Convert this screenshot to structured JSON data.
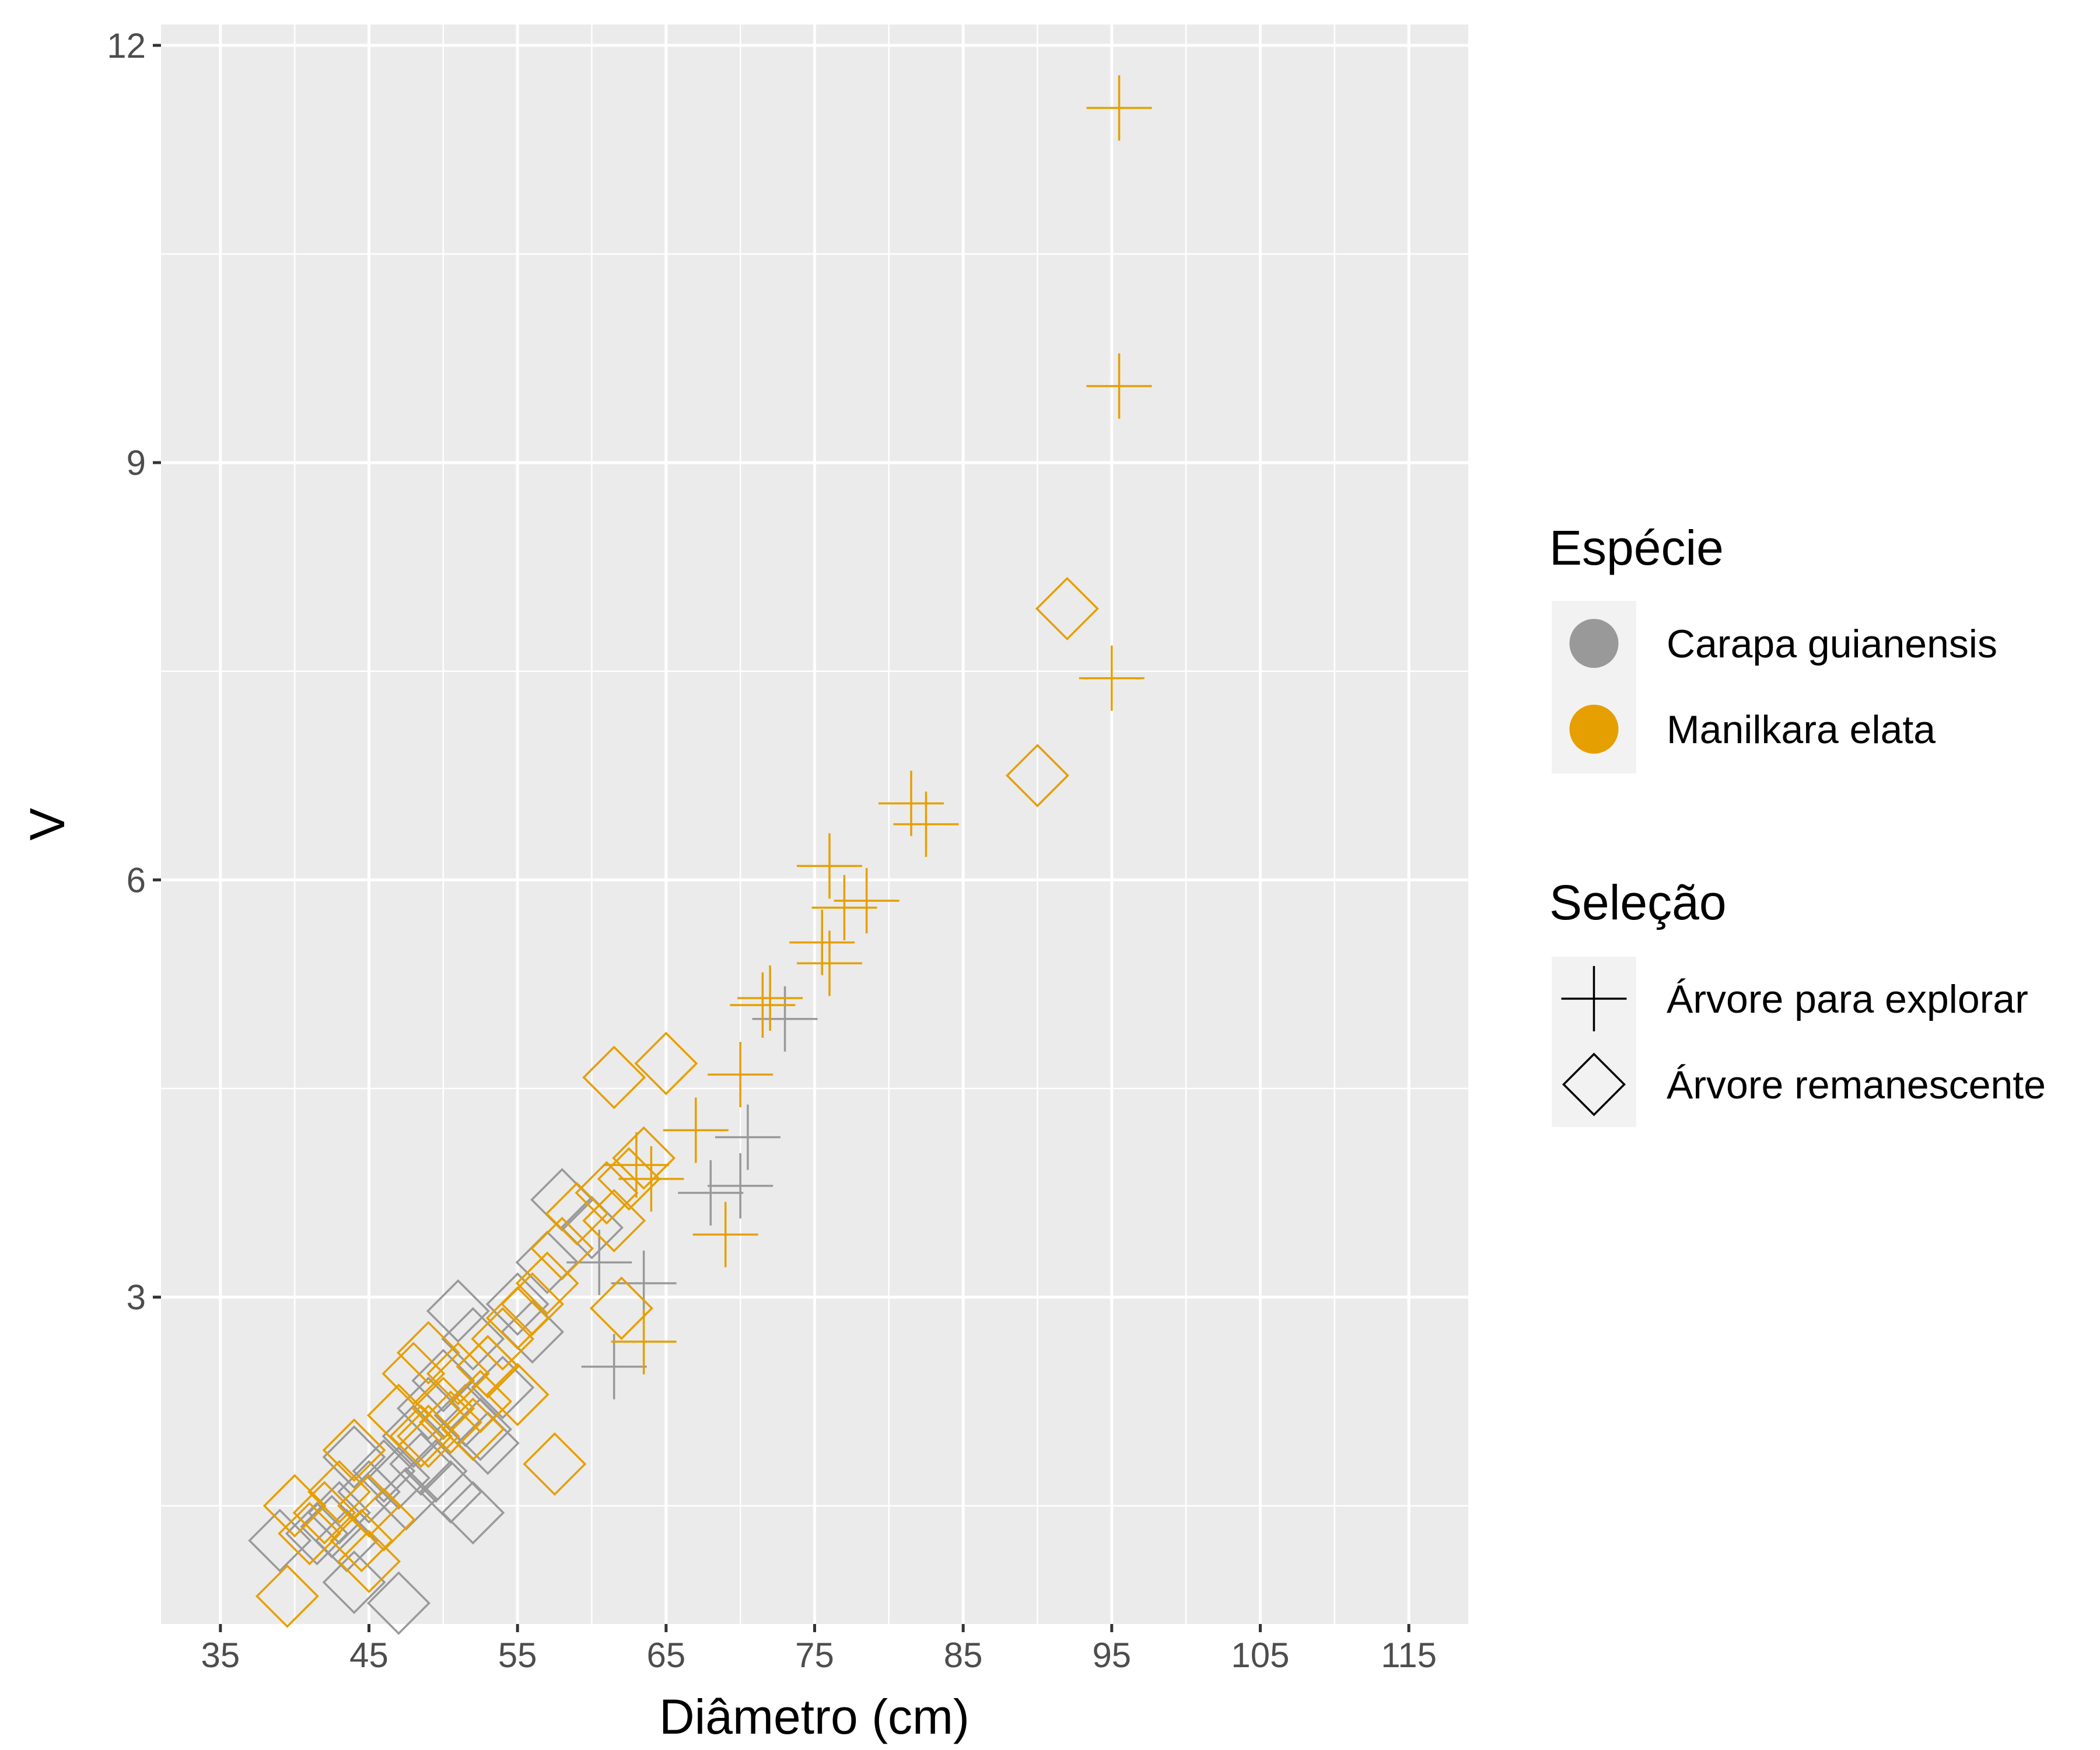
{
  "chart_data": {
    "type": "scatter",
    "xlabel": "Diâmetro (cm)",
    "ylabel": "V",
    "xlim": [
      31,
      119
    ],
    "ylim": [
      0.65,
      12.15
    ],
    "x_ticks": [
      35,
      45,
      55,
      65,
      75,
      85,
      95,
      105,
      115
    ],
    "y_ticks": [
      3,
      6,
      9,
      12
    ],
    "grid": true,
    "legend_position": "right",
    "colors": {
      "Carapa guianensis": "#999999",
      "Manilkara elata": "#E69F00"
    },
    "legends": [
      {
        "title": "Espécie",
        "key": "species",
        "entries": [
          "Carapa guianensis",
          "Manilkara elata"
        ]
      },
      {
        "title": "Seleção",
        "key": "selection",
        "entries": [
          "Árvore para explorar",
          "Árvore remanescente"
        ]
      }
    ],
    "series": [
      {
        "species": "Manilkara elata",
        "selection": "Árvore para explorar",
        "x": [
          95.5,
          95.5,
          95,
          81.5,
          82.5,
          76,
          78.5,
          77,
          75.5,
          76,
          72,
          71.5,
          70,
          67,
          63,
          64,
          69,
          63.5
        ],
        "y": [
          11.55,
          9.55,
          7.45,
          6.55,
          6.4,
          6.1,
          5.85,
          5.8,
          5.55,
          5.4,
          5.15,
          5.1,
          4.6,
          4.2,
          3.95,
          3.85,
          3.45,
          2.68
        ]
      },
      {
        "species": "Carapa guianensis",
        "selection": "Árvore para explorar",
        "x": [
          73,
          70.5,
          70,
          68,
          60.5,
          63.5,
          61.5
        ],
        "y": [
          5.0,
          4.15,
          3.8,
          3.75,
          3.25,
          3.1,
          2.5
        ]
      },
      {
        "species": "Manilkara elata",
        "selection": "Árvore remanescente",
        "x": [
          92,
          90,
          65,
          61.5,
          63.5,
          62.5,
          61,
          59,
          61.5,
          58,
          57,
          56,
          55,
          54,
          62,
          57.5,
          51,
          53,
          55,
          50,
          48,
          49,
          52,
          50.5,
          47,
          48.5,
          52.5,
          49,
          44,
          43,
          45,
          42,
          40,
          46,
          44.5,
          45,
          41,
          39.5
        ],
        "y": [
          7.95,
          6.75,
          4.68,
          4.58,
          4.0,
          3.85,
          3.75,
          3.6,
          3.55,
          3.35,
          3.1,
          2.95,
          2.85,
          2.7,
          2.92,
          1.8,
          2.45,
          2.5,
          2.3,
          2.2,
          2.45,
          2.6,
          2.05,
          2.1,
          2.15,
          2.0,
          2.25,
          2.0,
          1.9,
          1.6,
          1.5,
          1.45,
          1.5,
          1.4,
          1.25,
          1.1,
          1.3,
          0.85
        ]
      },
      {
        "species": "Carapa guianensis",
        "selection": "Árvore remanescente",
        "x": [
          58,
          60,
          57,
          55,
          56,
          51,
          52,
          53,
          54,
          50,
          49,
          51.5,
          52.5,
          53,
          48,
          48.5,
          49.5,
          47,
          47.5,
          50.5,
          52,
          46,
          45,
          44,
          43,
          42.5,
          43.5,
          41.5,
          39,
          44,
          47
        ],
        "y": [
          3.7,
          3.5,
          3.25,
          2.95,
          2.75,
          2.9,
          2.7,
          2.5,
          2.35,
          2.4,
          2.2,
          2.15,
          2.05,
          1.95,
          2.0,
          1.8,
          1.75,
          1.7,
          1.55,
          1.6,
          1.45,
          1.75,
          1.6,
          1.85,
          1.45,
          1.35,
          1.25,
          1.3,
          1.25,
          0.95,
          0.8
        ]
      }
    ]
  }
}
